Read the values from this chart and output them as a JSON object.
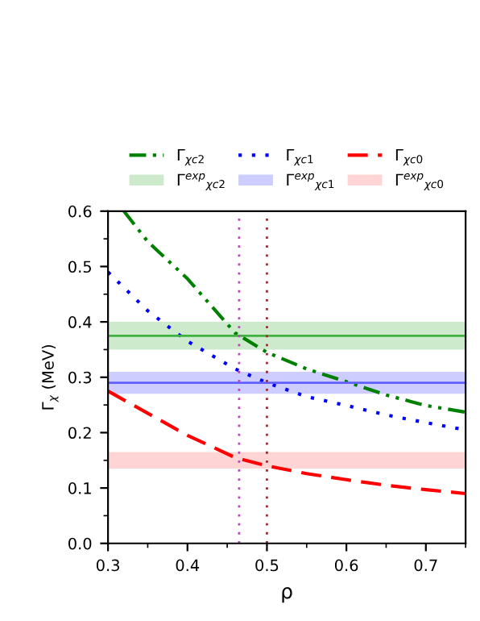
{
  "chart_data": {
    "type": "line",
    "xlabel": "ρ",
    "ylabel": "Γ$_{χ}$ (MeV)",
    "xlim": [
      0.3,
      0.75
    ],
    "xticks": [
      0.3,
      0.4,
      0.5,
      0.6,
      0.7
    ],
    "ylim": [
      0.0,
      0.6
    ],
    "yticks": [
      {
        "value": 0,
        "label": "0.0"
      },
      0.1,
      0.2,
      0.3,
      0.4,
      0.5,
      0.6
    ],
    "series": [
      {
        "name": "Γ$_{χc2}$",
        "color": "#008000",
        "line_style": "dashdot",
        "x": [
          0.32,
          0.35,
          0.4,
          0.46,
          0.5,
          0.55,
          0.6,
          0.65,
          0.7,
          0.75
        ],
        "values": [
          0.6,
          0.545,
          0.478,
          0.38,
          0.345,
          0.315,
          0.292,
          0.268,
          0.249,
          0.237
        ]
      },
      {
        "name": "Γ$_{χc1}$",
        "color": "#0000ff",
        "line_style": "dotted",
        "x": [
          0.3,
          0.35,
          0.4,
          0.46,
          0.5,
          0.55,
          0.6,
          0.65,
          0.7,
          0.75
        ],
        "values": [
          0.49,
          0.42,
          0.365,
          0.315,
          0.29,
          0.265,
          0.249,
          0.232,
          0.218,
          0.205
        ]
      },
      {
        "name": "Γ$_{χc0}$",
        "color": "#ff0000",
        "line_style": "dashed",
        "x": [
          0.3,
          0.35,
          0.4,
          0.46,
          0.5,
          0.55,
          0.6,
          0.65,
          0.7,
          0.75
        ],
        "values": [
          0.275,
          0.235,
          0.195,
          0.155,
          0.14,
          0.126,
          0.115,
          0.105,
          0.097,
          0.09
        ]
      }
    ],
    "bands": [
      {
        "axis": "y",
        "from": 0.35,
        "to": 0.4,
        "label": "Γ$^{exp}$$_{χc2}$",
        "color": "#90d090"
      },
      {
        "axis": "y",
        "from": 0.27,
        "to": 0.31,
        "label": "Γ$^{exp}$$_{χc1}$",
        "color": "#9090ff"
      },
      {
        "axis": "y",
        "from": 0.135,
        "to": 0.165,
        "label": "Γ$^{exp}$$_{χc0}$",
        "color": "#ffa0a0"
      }
    ],
    "ref_lines": [
      {
        "axis": "y",
        "value": 0.375,
        "color": "#40b040",
        "line_style": "solid"
      },
      {
        "axis": "y",
        "value": 0.29,
        "color": "#6060ff",
        "line_style": "solid"
      },
      {
        "axis": "x",
        "value": 0.465,
        "color": "#c040c0",
        "line_style": "dotted"
      },
      {
        "axis": "x",
        "value": 0.5,
        "color": "#903030",
        "line_style": "dotted"
      }
    ],
    "legend": "top",
    "grid": false
  }
}
